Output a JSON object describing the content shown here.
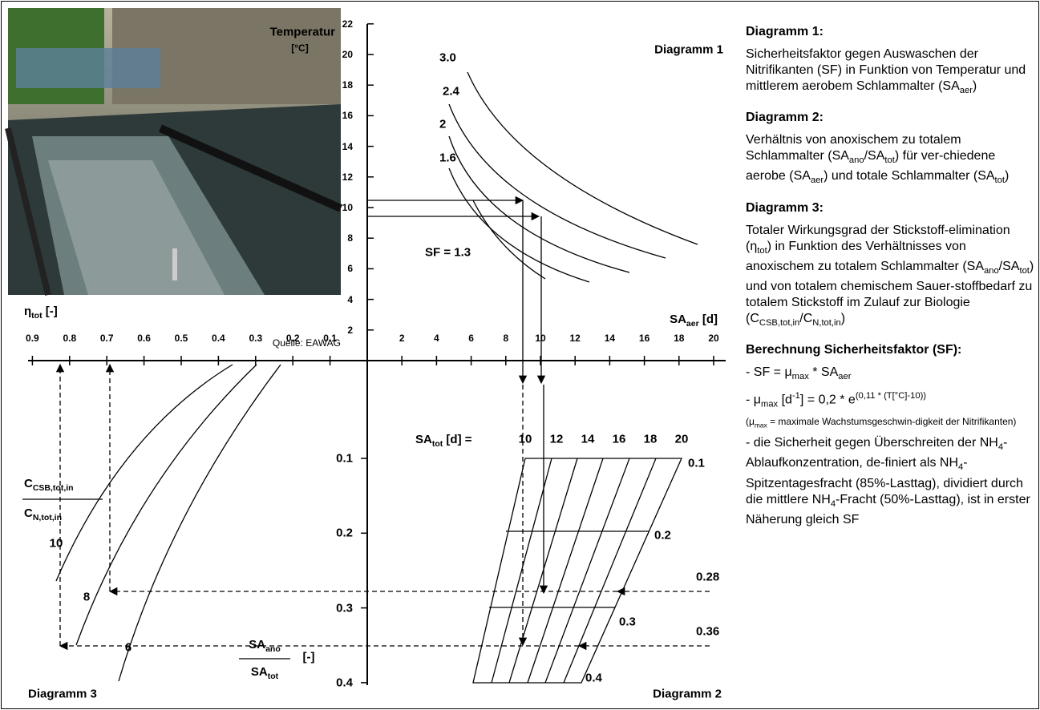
{
  "diagram1": {
    "label": "Diagramm 1",
    "y_label": [
      "Temperatur",
      "[°C]"
    ],
    "yticks": [
      2,
      4,
      6,
      8,
      10,
      12,
      14,
      16,
      18,
      20,
      22
    ],
    "xticks": [
      2,
      4,
      6,
      8,
      10,
      12,
      14,
      16,
      18,
      20
    ],
    "x_label": [
      "SA",
      {
        "sub": "aer"
      },
      " [d]"
    ],
    "curve_labels": [
      "3.0",
      "2.4",
      "2",
      "1.6",
      "SF = 1.3"
    ],
    "source": "Quelle: EAWAG"
  },
  "diagram2": {
    "label": "Diagramm 2",
    "sa_tot_label": [
      "SA",
      {
        "sub": "tot"
      },
      " [d] ="
    ],
    "sa_tot_ticks": [
      10,
      12,
      14,
      16,
      18,
      20
    ],
    "ratio_ticks": [
      0.1,
      0.2,
      0.3,
      0.4
    ],
    "ratio_numerator": [
      "SA",
      {
        "sub": "ano"
      }
    ],
    "ratio_denominator": [
      "SA",
      {
        "sub": "tot"
      }
    ],
    "ratio_unit": "[-]",
    "grid_labels": [
      "0.1",
      "0.2",
      "0.3",
      "0.4"
    ],
    "reading_labels": [
      "0.28",
      "0.36"
    ]
  },
  "diagram3": {
    "label": "Diagramm 3",
    "eta_label": [
      "η",
      {
        "sub": "tot"
      },
      "  [-]"
    ],
    "eta_ticks": [
      0.9,
      0.8,
      0.7,
      0.6,
      0.5,
      0.4,
      0.3,
      0.2,
      0.1
    ],
    "ratio_numerator": [
      "C",
      {
        "sub": "CSB,tot,in"
      }
    ],
    "ratio_denominator": [
      "C",
      {
        "sub": "N,tot,in"
      }
    ],
    "curve_labels": [
      "10",
      "8",
      "6"
    ]
  },
  "panel": {
    "sections": [
      {
        "title": "Diagramm 1:",
        "text": [
          "Sicherheitsfaktor gegen Auswaschen der Nitrifikanten (SF) in Funktion von Temperatur und mittlerem aerobem Schlammalter (SA",
          {
            "sub": "aer"
          },
          ")"
        ]
      },
      {
        "title": "Diagramm 2:",
        "text": [
          "Verhältnis von anoxischem zu totalem Schlammalter (SA",
          {
            "sub": "ano"
          },
          "/SA",
          {
            "sub": "tot"
          },
          ") für ver-chiedene aerobe (SA",
          {
            "sub": "aer"
          },
          ") und totale Schlammalter (SA",
          {
            "sub": "tot"
          },
          ")"
        ]
      },
      {
        "title": "Diagramm 3:",
        "text": [
          "Totaler Wirkungsgrad der Stickstoff-elimination (η",
          {
            "sub": "tot"
          },
          ") in Funktion des Verhältnisses von anoxischem zu totalem Schlammalter (SA",
          {
            "sub": "ano"
          },
          "/SA",
          {
            "sub": "tot"
          },
          ") und von totalem chemischem Sauer-stoffbedarf zu totalem Stickstoff im Zulauf zur Biologie (C",
          {
            "sub": "CSB,tot,in"
          },
          "/C",
          {
            "sub": "N,tot,in"
          },
          ")"
        ]
      }
    ],
    "calc_title": "Berechnung Sicherheitsfaktor (SF):",
    "calc_items": [
      [
        "- SF = μ",
        {
          "sub": "max"
        },
        " * SA",
        {
          "sub": "aer"
        }
      ],
      [
        "- μ",
        {
          "sub": "max"
        },
        " [d",
        {
          "sup": "-1"
        },
        "] = 0,2 * e",
        {
          "sup": "(0,11 * (T[°C]-10))"
        }
      ],
      [
        "(μ",
        {
          "sub": "max"
        },
        " = maximale Wachstumsgeschwin-digkeit der Nitrifikanten)"
      ],
      [
        "- die Sicherheit gegen Überschreiten der NH",
        {
          "sub": "4"
        },
        "-Ablaufkonzentration, de-finiert als NH",
        {
          "sub": "4"
        },
        "-Spitzentagesfracht (85%-Lasttag), dividiert durch die mittlere NH",
        {
          "sub": "4"
        },
        "-Fracht (50%-Lasttag), ist in erster Näherung gleich SF"
      ]
    ]
  }
}
